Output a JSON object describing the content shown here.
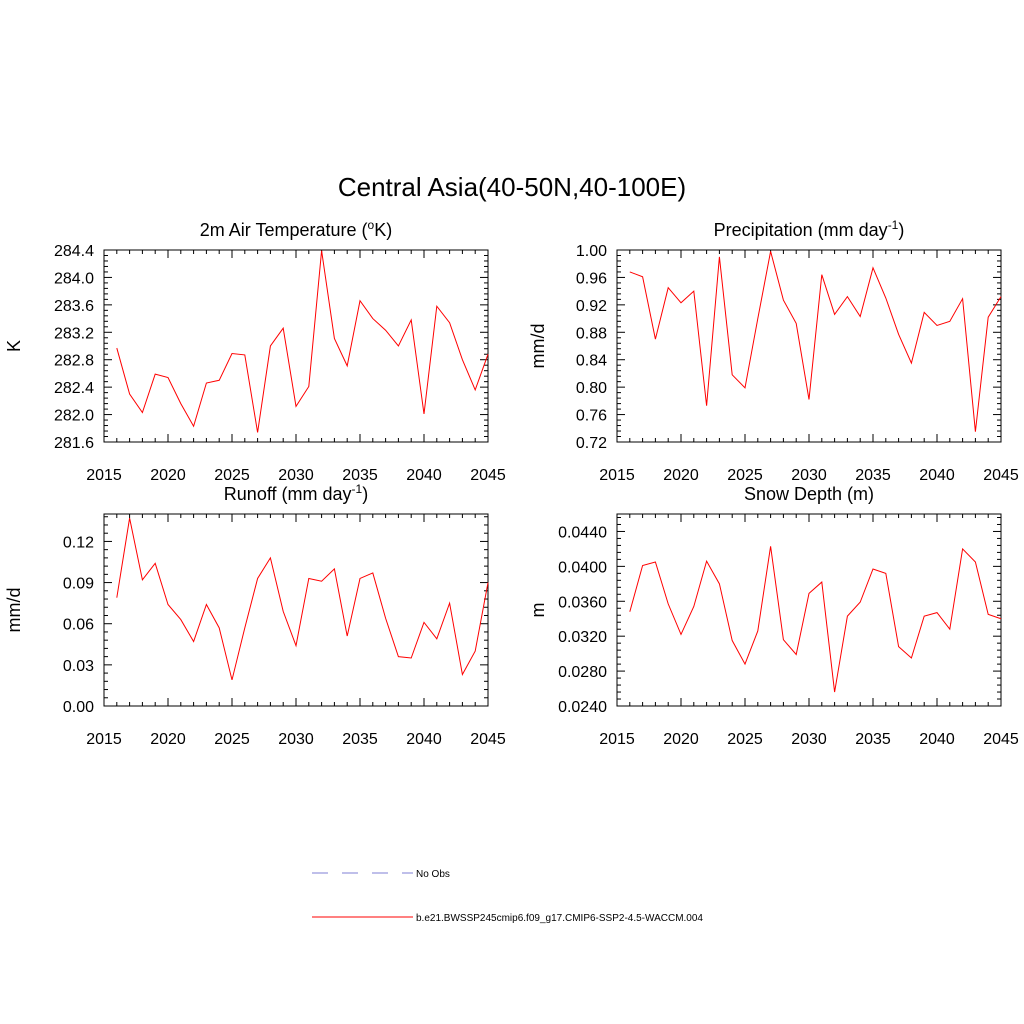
{
  "figure": {
    "title": "Central Asia(40-50N,40-100E)"
  },
  "colors": {
    "model_line": "#ff0000",
    "obs_line": "#9999dd",
    "axis": "#000000"
  },
  "legend": {
    "entries": [
      {
        "label": "No Obs",
        "style": "dashed",
        "color": "#9999dd"
      },
      {
        "label": "b.e21.BWSSP245cmip6.f09_g17.CMIP6-SSP2-4.5-WACCM.004",
        "style": "solid",
        "color": "#ff0000"
      }
    ]
  },
  "chart_data": [
    {
      "type": "line",
      "title": "2m Air Temperature (",
      "title_sup": "o",
      "title_tail": "K)",
      "ylabel": "K",
      "xlim": [
        2015,
        2045
      ],
      "ylim": [
        281.6,
        284.4
      ],
      "xticks": [
        2015,
        2020,
        2025,
        2030,
        2035,
        2040,
        2045
      ],
      "yticks": [
        281.6,
        282.0,
        282.4,
        282.8,
        283.2,
        283.6,
        284.0,
        284.4
      ],
      "yticklabels": [
        "281.6",
        "282.0",
        "282.4",
        "282.8",
        "283.2",
        "283.6",
        "284.0",
        "284.4"
      ],
      "x": [
        2016,
        2017,
        2018,
        2019,
        2020,
        2021,
        2022,
        2023,
        2024,
        2025,
        2026,
        2027,
        2028,
        2029,
        2030,
        2031,
        2032,
        2033,
        2034,
        2035,
        2036,
        2037,
        2038,
        2039,
        2040,
        2041,
        2042,
        2043,
        2044,
        2045
      ],
      "series": [
        {
          "values": [
            282.97,
            282.3,
            282.03,
            282.59,
            282.54,
            282.16,
            281.83,
            282.46,
            282.5,
            282.89,
            282.87,
            281.74,
            283.0,
            283.26,
            282.12,
            282.41,
            284.39,
            283.11,
            282.71,
            283.66,
            283.4,
            283.23,
            283.0,
            283.38,
            282.01,
            283.58,
            283.34,
            282.8,
            282.36,
            282.88
          ]
        }
      ]
    },
    {
      "type": "line",
      "title": "Precipitation (mm day",
      "title_sup": "-1",
      "title_tail": ")",
      "ylabel": "mm/d",
      "xlim": [
        2015,
        2045
      ],
      "ylim": [
        0.72,
        1.0
      ],
      "xticks": [
        2015,
        2020,
        2025,
        2030,
        2035,
        2040,
        2045
      ],
      "yticks": [
        0.72,
        0.76,
        0.8,
        0.84,
        0.88,
        0.92,
        0.96,
        1.0
      ],
      "yticklabels": [
        "0.72",
        "0.76",
        "0.80",
        "0.84",
        "0.88",
        "0.92",
        "0.96",
        "1.00"
      ],
      "x": [
        2016,
        2017,
        2018,
        2019,
        2020,
        2021,
        2022,
        2023,
        2024,
        2025,
        2026,
        2027,
        2028,
        2029,
        2030,
        2031,
        2032,
        2033,
        2034,
        2035,
        2036,
        2037,
        2038,
        2039,
        2040,
        2041,
        2042,
        2043,
        2044,
        2045
      ],
      "series": [
        {
          "values": [
            0.968,
            0.961,
            0.87,
            0.945,
            0.923,
            0.94,
            0.773,
            0.99,
            0.818,
            0.799,
            0.9,
            0.998,
            0.927,
            0.893,
            0.782,
            0.964,
            0.906,
            0.932,
            0.903,
            0.974,
            0.93,
            0.877,
            0.835,
            0.909,
            0.89,
            0.896,
            0.929,
            0.735,
            0.902,
            0.932
          ]
        }
      ]
    },
    {
      "type": "line",
      "title": "Runoff (mm day",
      "title_sup": "-1",
      "title_tail": ")",
      "ylabel": "mm/d",
      "xlim": [
        2015,
        2045
      ],
      "ylim": [
        0.0,
        0.14
      ],
      "xticks": [
        2015,
        2020,
        2025,
        2030,
        2035,
        2040,
        2045
      ],
      "yticks": [
        0.0,
        0.03,
        0.06,
        0.09,
        0.12
      ],
      "yticklabels": [
        "0.00",
        "0.03",
        "0.06",
        "0.09",
        "0.12"
      ],
      "x": [
        2016,
        2017,
        2018,
        2019,
        2020,
        2021,
        2022,
        2023,
        2024,
        2025,
        2026,
        2027,
        2028,
        2029,
        2030,
        2031,
        2032,
        2033,
        2034,
        2035,
        2036,
        2037,
        2038,
        2039,
        2040,
        2041,
        2042,
        2043,
        2044,
        2045
      ],
      "series": [
        {
          "values": [
            0.079,
            0.137,
            0.092,
            0.104,
            0.074,
            0.063,
            0.047,
            0.074,
            0.057,
            0.019,
            0.057,
            0.093,
            0.108,
            0.069,
            0.044,
            0.093,
            0.091,
            0.1,
            0.051,
            0.093,
            0.097,
            0.064,
            0.036,
            0.035,
            0.061,
            0.049,
            0.075,
            0.023,
            0.04,
            0.09
          ]
        }
      ]
    },
    {
      "type": "line",
      "title": "Snow Depth (m)",
      "title_sup": "",
      "title_tail": "",
      "ylabel": "m",
      "xlim": [
        2015,
        2045
      ],
      "ylim": [
        0.024,
        0.046
      ],
      "xticks": [
        2015,
        2020,
        2025,
        2030,
        2035,
        2040,
        2045
      ],
      "yticks": [
        0.024,
        0.028,
        0.032,
        0.036,
        0.04,
        0.044
      ],
      "yticklabels": [
        "0.0240",
        "0.0280",
        "0.0320",
        "0.0360",
        "0.0400",
        "0.0440"
      ],
      "x": [
        2016,
        2017,
        2018,
        2019,
        2020,
        2021,
        2022,
        2023,
        2024,
        2025,
        2026,
        2027,
        2028,
        2029,
        2030,
        2031,
        2032,
        2033,
        2034,
        2035,
        2036,
        2037,
        2038,
        2039,
        2040,
        2041,
        2042,
        2043,
        2044,
        2045
      ],
      "series": [
        {
          "values": [
            0.0348,
            0.0401,
            0.0405,
            0.0357,
            0.0322,
            0.0354,
            0.0406,
            0.038,
            0.0315,
            0.0288,
            0.0326,
            0.0423,
            0.0316,
            0.0299,
            0.0369,
            0.0382,
            0.0256,
            0.0343,
            0.0359,
            0.0397,
            0.0392,
            0.0308,
            0.0295,
            0.0343,
            0.0347,
            0.0328,
            0.042,
            0.0405,
            0.0345,
            0.034
          ]
        }
      ]
    }
  ]
}
